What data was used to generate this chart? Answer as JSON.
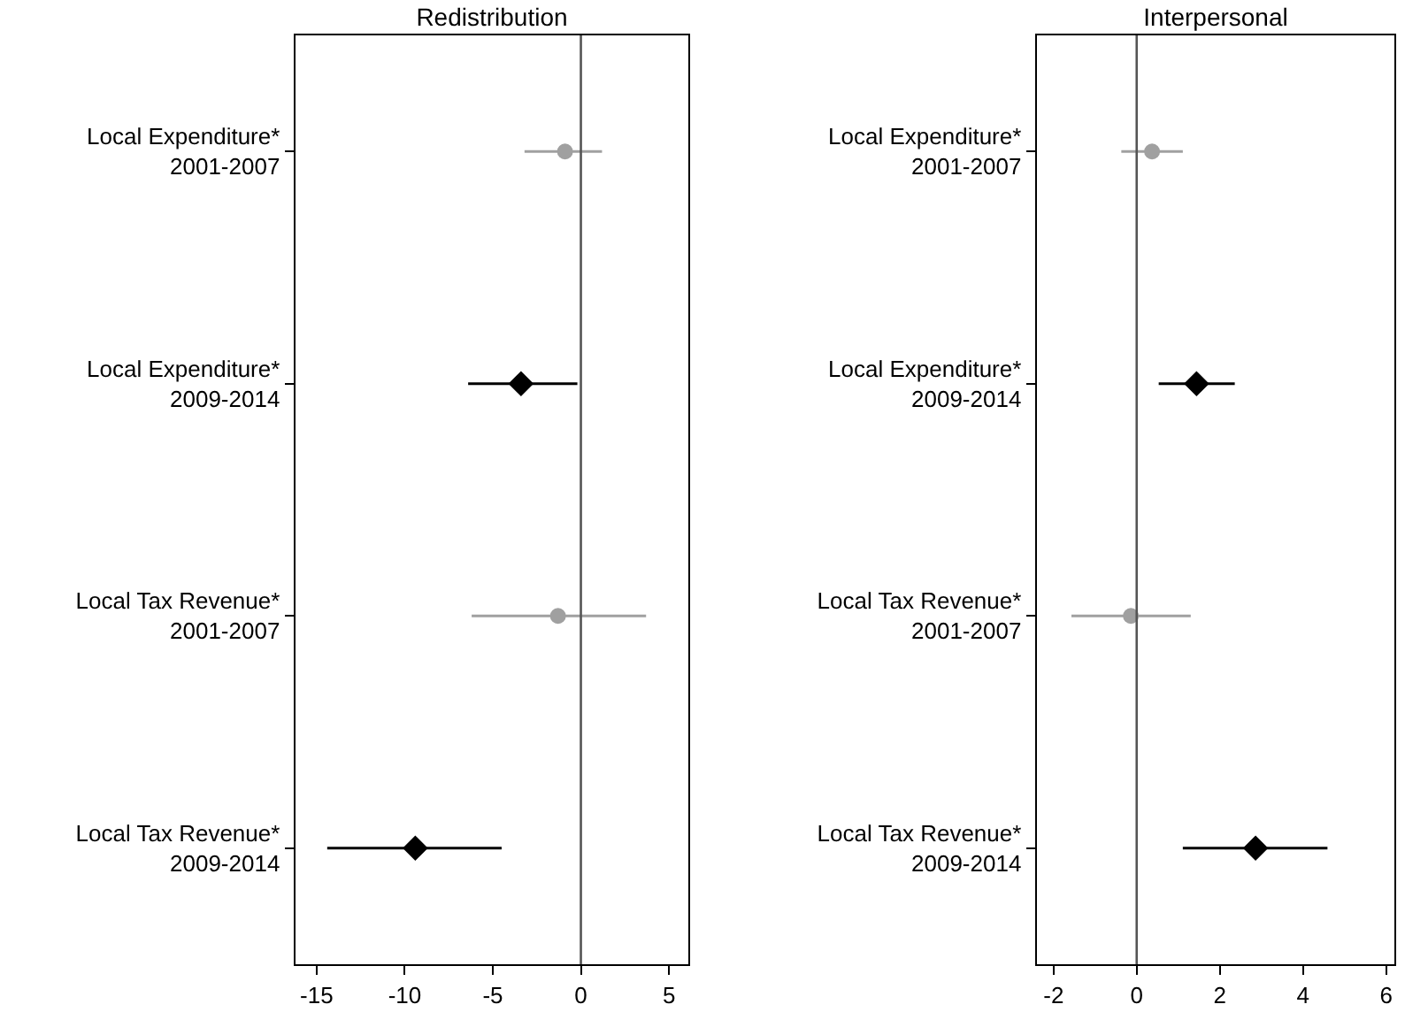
{
  "chart_data": [
    {
      "type": "scatter",
      "title": "Redistribution",
      "orientation": "horizontal",
      "categories": [
        "Local Expenditure*\n2001-2007",
        "Local Expenditure*\n2009-2014",
        "Local Tax Revenue*\n2001-2007",
        "Local Tax Revenue*\n2009-2014"
      ],
      "series": [
        {
          "color": "#a0a0a0",
          "marker": "circle",
          "values": [
            -0.9,
            null,
            -1.3,
            null
          ],
          "errors": [
            [
              -3.2,
              1.2
            ],
            null,
            [
              -6.2,
              3.7
            ],
            null
          ]
        },
        {
          "color": "#000000",
          "marker": "diamond",
          "values": [
            null,
            -3.4,
            null,
            -9.4
          ],
          "errors": [
            null,
            [
              -6.4,
              -0.2
            ],
            null,
            [
              -14.4,
              -4.5
            ]
          ]
        }
      ],
      "xlim": [
        -16.2,
        6.1
      ],
      "xticks": [
        -15,
        -10,
        -5,
        0,
        5
      ],
      "ref_lines": [
        {
          "axis": "x",
          "value": 0,
          "color": "#555555"
        }
      ]
    },
    {
      "type": "scatter",
      "title": "Interpersonal",
      "orientation": "horizontal",
      "categories": [
        "Local Expenditure*\n2001-2007",
        "Local Expenditure*\n2009-2014",
        "Local Tax Revenue*\n2001-2007",
        "Local Tax Revenue*\n2009-2014"
      ],
      "series": [
        {
          "color": "#a0a0a0",
          "marker": "circle",
          "values": [
            0.37,
            null,
            -0.14,
            null
          ],
          "errors": [
            [
              -0.37,
              1.11
            ],
            null,
            [
              -1.57,
              1.3
            ],
            null
          ]
        },
        {
          "color": "#000000",
          "marker": "diamond",
          "values": [
            null,
            1.44,
            null,
            2.86
          ],
          "errors": [
            null,
            [
              0.53,
              2.36
            ],
            null,
            [
              1.11,
              4.59
            ]
          ]
        }
      ],
      "xlim": [
        -2.4,
        6.2
      ],
      "xticks": [
        -2,
        0,
        2,
        4,
        6
      ],
      "ref_lines": [
        {
          "axis": "x",
          "value": 0,
          "color": "#555555"
        }
      ]
    }
  ]
}
